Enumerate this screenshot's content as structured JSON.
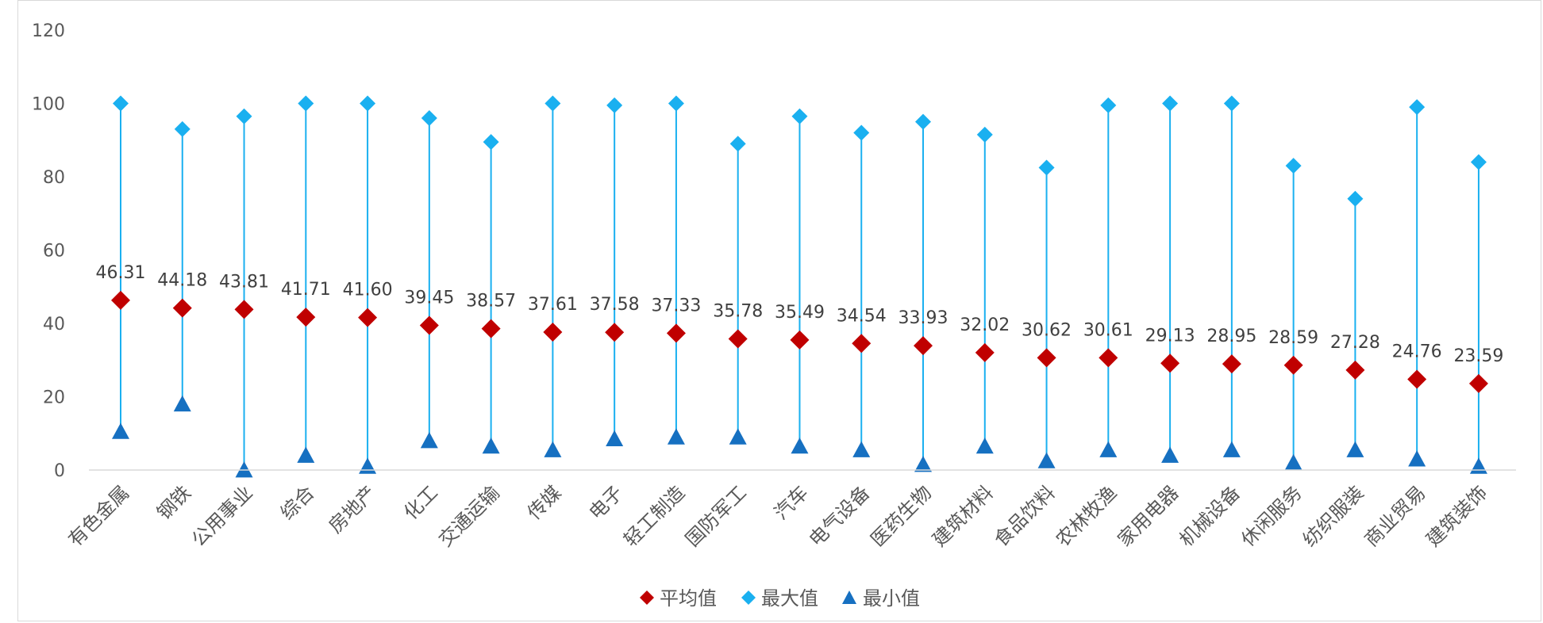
{
  "chart_data": {
    "type": "scatter",
    "categories": [
      "有色金属",
      "钢铁",
      "公用事业",
      "综合",
      "房地产",
      "化工",
      "交通运输",
      "传媒",
      "电子",
      "轻工制造",
      "国防军工",
      "汽车",
      "电气设备",
      "医药生物",
      "建筑材料",
      "食品饮料",
      "农林牧渔",
      "家用电器",
      "机械设备",
      "休闲服务",
      "纺织服装",
      "商业贸易",
      "建筑装饰"
    ],
    "series": [
      {
        "name": "平均值",
        "marker": "diamond",
        "color": "#c00000",
        "values": [
          46.31,
          44.18,
          43.81,
          41.71,
          41.6,
          39.45,
          38.57,
          37.61,
          37.58,
          37.33,
          35.78,
          35.49,
          34.54,
          33.93,
          32.02,
          30.62,
          30.61,
          29.13,
          28.95,
          28.59,
          27.28,
          24.76,
          23.59
        ],
        "labels": [
          "46.31",
          "44.18",
          "43.81",
          "41.71",
          "41.60",
          "39.45",
          "38.57",
          "37.61",
          "37.58",
          "37.33",
          "35.78",
          "35.49",
          "34.54",
          "33.93",
          "32.02",
          "30.62",
          "30.61",
          "29.13",
          "28.95",
          "28.59",
          "27.28",
          "24.76",
          "23.59"
        ]
      },
      {
        "name": "最大值",
        "marker": "diamond",
        "color": "#1ab0f0",
        "values": [
          100,
          93,
          96.5,
          100,
          100,
          96,
          89.5,
          100,
          99.5,
          100,
          89,
          96.5,
          92,
          95,
          91.5,
          82.5,
          99.5,
          100,
          100,
          83,
          74,
          99,
          84
        ]
      },
      {
        "name": "最小值",
        "marker": "triangle",
        "color": "#1670c1",
        "values": [
          10.5,
          18,
          0,
          4,
          1,
          8,
          6.5,
          5.5,
          8.5,
          9,
          9,
          6.5,
          5.5,
          1.5,
          6.5,
          2.5,
          5.5,
          4,
          5.5,
          2,
          5.5,
          3,
          1
        ]
      }
    ],
    "yticks": [
      "0",
      "20",
      "40",
      "60",
      "80",
      "100",
      "120"
    ],
    "ylim": [
      0,
      120
    ],
    "range_line_color": "#1ab0f0",
    "legend_position": "bottom-center",
    "grid": false
  },
  "legend": {
    "avg": "平均值",
    "max": "最大值",
    "min": "最小值"
  }
}
